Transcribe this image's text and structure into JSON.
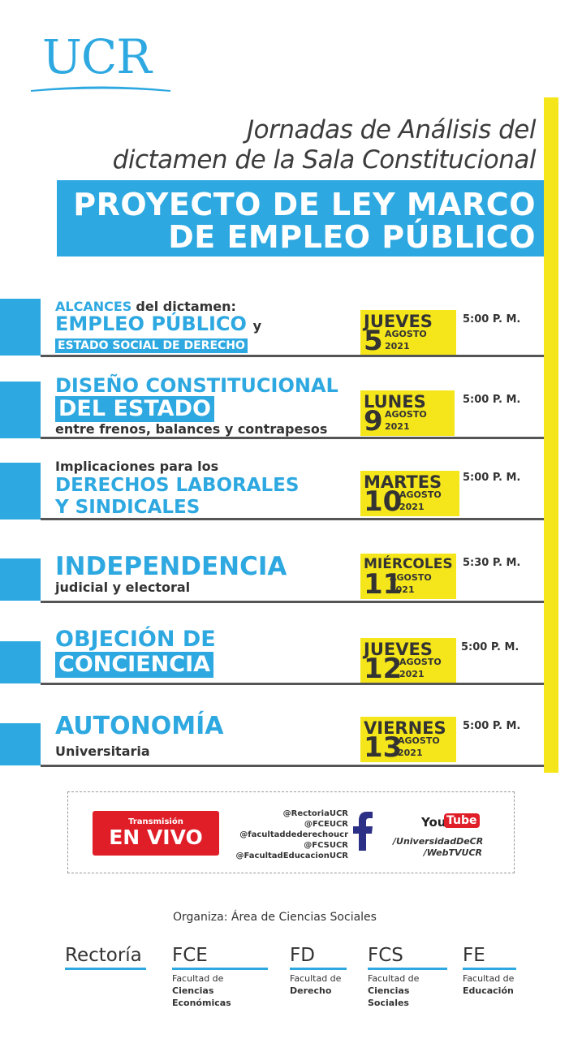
{
  "logo": {
    "text": "UCR"
  },
  "subtitle": {
    "line1": "Jornadas de Análisis del",
    "line2": "dictamen de la Sala Constitucional"
  },
  "title": {
    "line1": "PROYECTO DE LEY MARCO",
    "line2": "DE EMPLEO PÚBLICO"
  },
  "sessions": [
    {
      "l1a": "ALCANCES",
      "l1b": "del dictamen:",
      "l2a": "EMPLEO PÚBLICO",
      "l2b": "y",
      "l3": "ESTADO SOCIAL DE DERECHO",
      "day": "JUEVES",
      "num": "5",
      "month": "AGOSTO",
      "year": "2021",
      "time": "5:00 P. M."
    },
    {
      "l1": "DISEÑO CONSTITUCIONAL",
      "l2": "DEL ESTADO",
      "l3": "entre frenos, balances y contrapesos",
      "day": "LUNES",
      "num": "9",
      "month": "AGOSTO",
      "year": "2021",
      "time": "5:00 P. M."
    },
    {
      "l1": "Implicaciones para los",
      "l2": "DERECHOS LABORALES",
      "l3": "Y SINDICALES",
      "day": "MARTES",
      "num": "10",
      "month": "AGOSTO",
      "year": "2021",
      "time": "5:00 P. M."
    },
    {
      "l1": "INDEPENDENCIA",
      "l2": "judicial y electoral",
      "day": "MIÉRCOLES",
      "num": "11",
      "month": "AGOSTO",
      "year": "2021",
      "time": "5:30 P. M."
    },
    {
      "l1": "OBJECIÓN DE",
      "l2": "CONCIENCIA",
      "day": "JUEVES",
      "num": "12",
      "month": "AGOSTO",
      "year": "2021",
      "time": "5:00 P. M."
    },
    {
      "l1": "AUTONOMÍA",
      "l2": "Universitaria",
      "day": "VIERNES",
      "num": "13",
      "month": "AGOSTO",
      "year": "2021",
      "time": "5:00 P. M."
    }
  ],
  "stream": {
    "live_small": "Transmisión",
    "live_big": "EN VIVO",
    "handles": [
      "@RectoriaUCR",
      "@FCEUCR",
      "@facultaddederechoucr",
      "@FCSUCR",
      "@FacultadEducacionUCR"
    ],
    "yt_you": "You",
    "yt_tube": "Tube",
    "yt_links": [
      "/UniversidadDeCR",
      "/WebTVUCR"
    ]
  },
  "organiza": "Organiza: Área de Ciencias Sociales",
  "footer": [
    {
      "title": "Rectoría",
      "sub1": "",
      "sub2": ""
    },
    {
      "title": "FCE",
      "sub1": "Facultad de",
      "sub2": "Ciencias Económicas"
    },
    {
      "title": "FD",
      "sub1": "Facultad de",
      "sub2": "Derecho"
    },
    {
      "title": "FCS",
      "sub1": "Facultad de",
      "sub2": "Ciencias Sociales"
    },
    {
      "title": "FE",
      "sub1": "Facultad de",
      "sub2": "Educación"
    }
  ],
  "colors": {
    "accent": "#2ea8e0",
    "highlight": "#f5e61b",
    "live": "#e01e28",
    "text": "#333333"
  }
}
